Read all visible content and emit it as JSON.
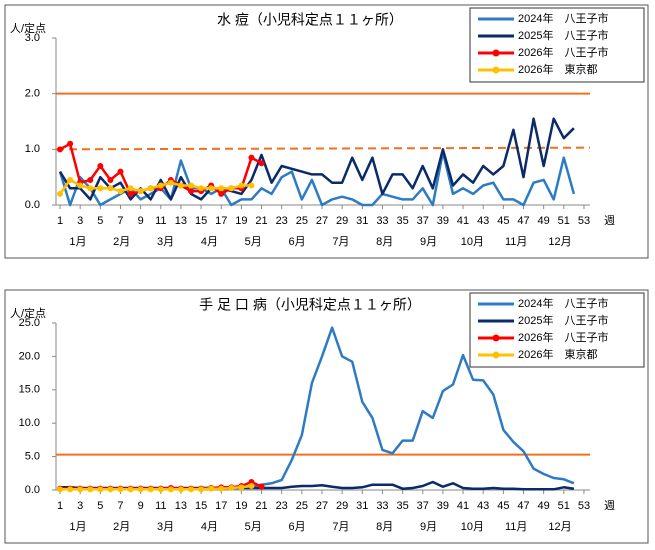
{
  "chart_data": [
    {
      "type": "line",
      "title": "水 痘（小児科定点１１ヶ所）",
      "y_label": "人/定点",
      "x_label": "週",
      "months": [
        "1月",
        "2月",
        "3月",
        "4月",
        "5月",
        "6月",
        "7月",
        "8月",
        "9月",
        "10月",
        "11月",
        "12月"
      ],
      "x": [
        1,
        2,
        3,
        4,
        5,
        6,
        7,
        8,
        9,
        10,
        11,
        12,
        13,
        14,
        15,
        16,
        17,
        18,
        19,
        20,
        21,
        22,
        23,
        24,
        25,
        26,
        27,
        28,
        29,
        30,
        31,
        32,
        33,
        34,
        35,
        36,
        37,
        38,
        39,
        40,
        41,
        42,
        43,
        44,
        45,
        46,
        47,
        48,
        49,
        50,
        51,
        52
      ],
      "xlim": [
        0.6,
        53.6
      ],
      "xticks": [
        1,
        3,
        5,
        7,
        9,
        11,
        13,
        15,
        17,
        19,
        21,
        23,
        25,
        27,
        29,
        31,
        33,
        35,
        37,
        39,
        41,
        43,
        45,
        47,
        49,
        51,
        53
      ],
      "ylim": [
        0,
        3
      ],
      "yticks": [
        {
          "value": 0,
          "label": "0.0"
        },
        {
          "value": 1,
          "label": "1.0"
        },
        {
          "value": 2,
          "label": "2.0"
        },
        {
          "value": 3,
          "label": "3.0"
        }
      ],
      "reference_lines": [
        {
          "values": [
            2,
            2
          ],
          "color": "#f07020",
          "dash": false
        },
        {
          "values": [
            1.0,
            1.03
          ],
          "color": "#f07020",
          "dash": true
        }
      ],
      "series": [
        {
          "name": "2024年　八王子市",
          "color": "#2e7bc4",
          "marker": false,
          "values": [
            0.6,
            0.0,
            0.5,
            0.3,
            0.0,
            0.1,
            0.2,
            0.3,
            0.1,
            0.2,
            0.3,
            0.1,
            0.8,
            0.3,
            0.3,
            0.2,
            0.3,
            0.0,
            0.1,
            0.1,
            0.3,
            0.2,
            0.5,
            0.6,
            0.1,
            0.45,
            0.0,
            0.1,
            0.15,
            0.1,
            0.0,
            0.0,
            0.2,
            0.15,
            0.1,
            0.1,
            0.3,
            0.0,
            0.95,
            0.2,
            0.3,
            0.2,
            0.35,
            0.4,
            0.1,
            0.1,
            0.0,
            0.4,
            0.45,
            0.1,
            0.85,
            0.2
          ]
        },
        {
          "name": "2025年　八王子市",
          "color": "#0a2a6a",
          "marker": false,
          "values": [
            0.6,
            0.3,
            0.3,
            0.1,
            0.5,
            0.3,
            0.4,
            0.1,
            0.3,
            0.1,
            0.45,
            0.1,
            0.5,
            0.2,
            0.1,
            0.3,
            0.3,
            0.25,
            0.2,
            0.45,
            0.9,
            0.4,
            0.7,
            0.65,
            0.6,
            0.55,
            0.55,
            0.4,
            0.4,
            0.85,
            0.45,
            0.85,
            0.2,
            0.55,
            0.55,
            0.3,
            0.7,
            0.3,
            1.0,
            0.35,
            0.55,
            0.4,
            0.7,
            0.55,
            0.7,
            1.35,
            0.5,
            1.55,
            0.7,
            1.55,
            1.2,
            1.38
          ]
        },
        {
          "name": "2026年　八王子市",
          "color": "#ff0000",
          "marker": true,
          "values": [
            1.0,
            1.1,
            0.4,
            0.45,
            0.7,
            0.45,
            0.6,
            0.2,
            0.25,
            0.3,
            0.3,
            0.45,
            0.35,
            0.25,
            0.25,
            0.35,
            0.2,
            0.3,
            0.3,
            0.85,
            0.75,
            null,
            null,
            null,
            null,
            null,
            null,
            null,
            null,
            null,
            null,
            null,
            null,
            null,
            null,
            null,
            null,
            null,
            null,
            null,
            null,
            null,
            null,
            null,
            null,
            null,
            null,
            null,
            null,
            null,
            null,
            null
          ]
        },
        {
          "name": "2026年　東京都",
          "color": "#ffc000",
          "marker": true,
          "values": [
            0.2,
            0.45,
            0.35,
            0.3,
            0.3,
            0.3,
            0.25,
            0.3,
            0.25,
            0.3,
            0.35,
            0.4,
            0.35,
            0.35,
            0.3,
            0.3,
            0.3,
            0.3,
            0.35,
            0.35,
            null,
            null,
            null,
            null,
            null,
            null,
            null,
            null,
            null,
            null,
            null,
            null,
            null,
            null,
            null,
            null,
            null,
            null,
            null,
            null,
            null,
            null,
            null,
            null,
            null,
            null,
            null,
            null,
            null,
            null,
            null,
            null
          ]
        }
      ]
    },
    {
      "type": "line",
      "title": "手 足 口 病（小児科定点１１ヶ所）",
      "y_label": "人/定点",
      "x_label": "週",
      "months": [
        "1月",
        "2月",
        "3月",
        "4月",
        "5月",
        "6月",
        "7月",
        "8月",
        "9月",
        "10月",
        "11月",
        "12月"
      ],
      "x": [
        1,
        2,
        3,
        4,
        5,
        6,
        7,
        8,
        9,
        10,
        11,
        12,
        13,
        14,
        15,
        16,
        17,
        18,
        19,
        20,
        21,
        22,
        23,
        24,
        25,
        26,
        27,
        28,
        29,
        30,
        31,
        32,
        33,
        34,
        35,
        36,
        37,
        38,
        39,
        40,
        41,
        42,
        43,
        44,
        45,
        46,
        47,
        48,
        49,
        50,
        51,
        52
      ],
      "xlim": [
        0.6,
        53.6
      ],
      "xticks": [
        1,
        3,
        5,
        7,
        9,
        11,
        13,
        15,
        17,
        19,
        21,
        23,
        25,
        27,
        29,
        31,
        33,
        35,
        37,
        39,
        41,
        43,
        45,
        47,
        49,
        51,
        53
      ],
      "ylim": [
        0,
        25
      ],
      "yticks": [
        {
          "value": 0,
          "label": "0.0"
        },
        {
          "value": 5,
          "label": "5.0"
        },
        {
          "value": 10,
          "label": "10.0"
        },
        {
          "value": 15,
          "label": "15.0"
        },
        {
          "value": 20,
          "label": "20.0"
        },
        {
          "value": 25,
          "label": "25.0"
        }
      ],
      "reference_lines": [
        {
          "values": [
            5.3,
            5.3
          ],
          "color": "#f07020",
          "dash": false
        }
      ],
      "series": [
        {
          "name": "2024年　八王子市",
          "color": "#2e7bc4",
          "marker": false,
          "values": [
            0.3,
            0.3,
            0.2,
            0.2,
            0.2,
            0.2,
            0.2,
            0.2,
            0.2,
            0.2,
            0.2,
            0.2,
            0.2,
            0.2,
            0.3,
            0.3,
            0.3,
            0.4,
            0.4,
            0.5,
            0.8,
            1.0,
            1.5,
            4.5,
            8.2,
            16,
            20,
            24.3,
            20,
            19.2,
            13.2,
            10.8,
            6,
            5.5,
            7.4,
            7.4,
            11.8,
            10.8,
            14.8,
            15.8,
            20.2,
            16.5,
            16.4,
            14.3,
            9,
            7.2,
            5.8,
            3.2,
            2.4,
            1.8,
            1.6,
            1.0
          ]
        },
        {
          "name": "2025年　八王子市",
          "color": "#0a2a6a",
          "marker": false,
          "values": [
            0.4,
            0.4,
            0.3,
            0.3,
            0.3,
            0.3,
            0.3,
            0.3,
            0.3,
            0.3,
            0.3,
            0.3,
            0.3,
            0.3,
            0.3,
            0.3,
            0.3,
            0.3,
            0.3,
            0.3,
            0.3,
            0.3,
            0.3,
            0.5,
            0.6,
            0.6,
            0.7,
            0.5,
            0.3,
            0.3,
            0.4,
            0.8,
            0.8,
            0.8,
            0.2,
            0.3,
            0.6,
            1.2,
            0.5,
            1.0,
            0.3,
            0.2,
            0.2,
            0.3,
            0.2,
            0.2,
            0.1,
            0.1,
            0.1,
            0.1,
            0.4,
            0.2
          ]
        },
        {
          "name": "2026年　八王子市",
          "color": "#ff0000",
          "marker": true,
          "values": [
            0.2,
            0.2,
            0.2,
            0.2,
            0.2,
            0.2,
            0.2,
            0.2,
            0.2,
            0.2,
            0.2,
            0.3,
            0.2,
            0.2,
            0.2,
            0.3,
            0.4,
            0.4,
            0.6,
            1.2,
            0.5,
            null,
            null,
            null,
            null,
            null,
            null,
            null,
            null,
            null,
            null,
            null,
            null,
            null,
            null,
            null,
            null,
            null,
            null,
            null,
            null,
            null,
            null,
            null,
            null,
            null,
            null,
            null,
            null,
            null,
            null,
            null
          ]
        },
        {
          "name": "2026年　東京都",
          "color": "#ffc000",
          "marker": true,
          "values": [
            0.1,
            0.1,
            0.1,
            0.1,
            0.1,
            0.1,
            0.1,
            0.1,
            0.1,
            0.1,
            0.1,
            0.1,
            0.1,
            0.1,
            0.1,
            0.2,
            0.2,
            0.3,
            0.4,
            0.6,
            null,
            null,
            null,
            null,
            null,
            null,
            null,
            null,
            null,
            null,
            null,
            null,
            null,
            null,
            null,
            null,
            null,
            null,
            null,
            null,
            null,
            null,
            null,
            null,
            null,
            null,
            null,
            null,
            null,
            null,
            null,
            null
          ]
        }
      ]
    }
  ]
}
